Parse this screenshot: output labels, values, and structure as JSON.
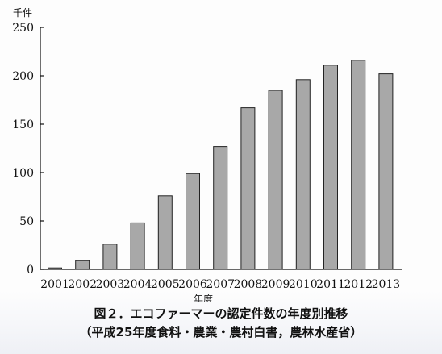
{
  "chart_data": {
    "type": "bar",
    "categories": [
      "2001",
      "2002",
      "2003",
      "2004",
      "2005",
      "2006",
      "2007",
      "2008",
      "2009",
      "2010",
      "2011",
      "2012",
      "2013"
    ],
    "values": [
      1.5,
      9,
      26,
      48,
      76,
      99,
      127,
      167,
      185,
      196,
      211,
      216,
      202
    ],
    "unit": "千件",
    "xlabel": "年度",
    "ylim": [
      0,
      250
    ],
    "yticks": [
      0,
      50,
      100,
      150,
      200,
      250
    ],
    "grid": false,
    "colors": {
      "bar_fill": "#a8a8a8",
      "bar_stroke": "#222222",
      "axis": "#111111"
    }
  },
  "caption": {
    "title": "図２．エコファーマーの認定件数の年度別推移",
    "source": "（平成25年度食料・農業・農村白書，農林水産省）"
  }
}
